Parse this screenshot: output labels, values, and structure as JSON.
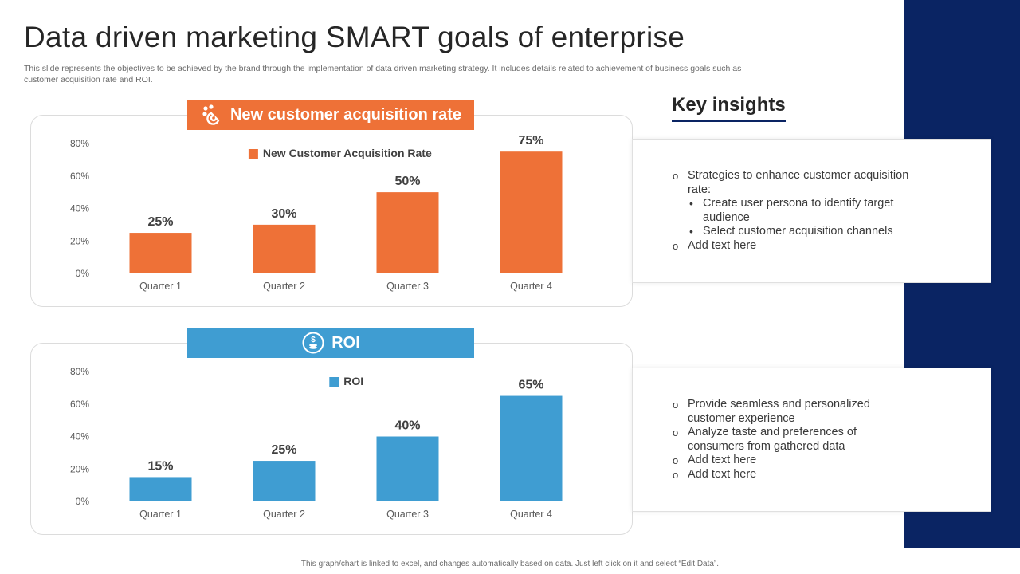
{
  "slide": {
    "title": "Data driven marketing SMART goals of enterprise",
    "subtitle": "This slide represents the objectives to be achieved by the brand through the implementation of data driven marketing strategy. It includes details related to achievement of business goals such as customer acquisition rate and ROI.",
    "footer": "This graph/chart is linked to excel, and changes automatically based on data. Just left click on it and select “Edit Data”."
  },
  "colors": {
    "navy": "#0a2463",
    "orange": "#ee7137",
    "blue": "#3f9dd2",
    "axis_text": "#595959"
  },
  "charts": {
    "acquisition": {
      "header": "New customer acquisition rate",
      "icon": "magnet-people-icon"
    },
    "roi": {
      "header": "ROI",
      "icon": "dollar-coins-icon"
    }
  },
  "chart_data": [
    {
      "type": "bar",
      "title": "New customer acquisition rate",
      "legend": "New Customer Acquisition Rate",
      "legend_position": "top-center",
      "categories": [
        "Quarter 1",
        "Quarter 2",
        "Quarter 3",
        "Quarter 4"
      ],
      "values": [
        25,
        30,
        50,
        75
      ],
      "value_labels": [
        "25%",
        "30%",
        "50%",
        "75%"
      ],
      "yticks": [
        "0%",
        "20%",
        "40%",
        "60%",
        "80%"
      ],
      "ylim": [
        0,
        80
      ],
      "grid": false,
      "color": "#ee7137"
    },
    {
      "type": "bar",
      "title": "ROI",
      "legend": "ROI",
      "legend_position": "top-center",
      "categories": [
        "Quarter 1",
        "Quarter 2",
        "Quarter 3",
        "Quarter 4"
      ],
      "values": [
        15,
        25,
        40,
        65
      ],
      "value_labels": [
        "15%",
        "25%",
        "40%",
        "65%"
      ],
      "yticks": [
        "0%",
        "20%",
        "40%",
        "60%",
        "80%"
      ],
      "ylim": [
        0,
        80
      ],
      "grid": false,
      "color": "#3f9dd2"
    }
  ],
  "insights": {
    "title": "Key insights",
    "box1": {
      "item1": "Strategies to enhance customer acquisition rate:",
      "sub1": "Create user persona to identify target audience",
      "sub2": "Select customer acquisition channels",
      "item2": "Add text here"
    },
    "box2": {
      "item1": "Provide seamless and personalized customer experience",
      "item2": "Analyze taste and preferences of consumers from gathered data",
      "item3": "Add text here",
      "item4": "Add text here"
    }
  }
}
